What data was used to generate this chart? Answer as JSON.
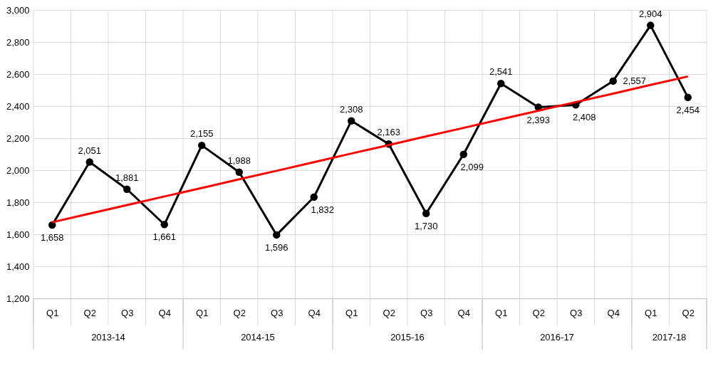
{
  "chart_data": {
    "type": "line",
    "categories": [
      "Q1",
      "Q2",
      "Q3",
      "Q4",
      "Q1",
      "Q2",
      "Q3",
      "Q4",
      "Q1",
      "Q2",
      "Q3",
      "Q4",
      "Q1",
      "Q2",
      "Q3",
      "Q4",
      "Q1",
      "Q2"
    ],
    "annotations": [
      "2013-14",
      "2014-15",
      "2015-16",
      "2016-17",
      "2017-18"
    ],
    "series": [
      {
        "color": "#000000",
        "marker": "circle",
        "values": [
          1658,
          2051,
          1881,
          1661,
          2155,
          1988,
          1596,
          1832,
          2308,
          2163,
          1730,
          2099,
          2541,
          2393,
          2408,
          2557,
          2904,
          2454
        ],
        "value_labels": [
          "1,658",
          "2,051",
          "1,881",
          "1,661",
          "2,155",
          "1,988",
          "1,596",
          "1,832",
          "2,308",
          "2,163",
          "1,730",
          "2,099",
          "2,541",
          "2,393",
          "2,408",
          "2,557",
          "2,904",
          "2,454"
        ]
      },
      {
        "color": "#ff0000",
        "marker": "none",
        "values": [
          1675,
          1729,
          1782,
          1836,
          1889,
          1943,
          1996,
          2050,
          2104,
          2157,
          2211,
          2264,
          2318,
          2371,
          2425,
          2478,
          2532,
          2585
        ]
      }
    ],
    "ylim": [
      1200,
      3000
    ],
    "yticks": [
      {
        "value": 1200,
        "label": "1,200"
      },
      {
        "value": 1400,
        "label": "1,400"
      },
      {
        "value": 1600,
        "label": "1,600"
      },
      {
        "value": 1800,
        "label": "1,800"
      },
      {
        "value": 2000,
        "label": "2,000"
      },
      {
        "value": 2200,
        "label": "2,200"
      },
      {
        "value": 2400,
        "label": "2,400"
      },
      {
        "value": 2600,
        "label": "2,600"
      },
      {
        "value": 2800,
        "label": "2,800"
      },
      {
        "value": 3000,
        "label": "3,000"
      }
    ],
    "grid": true,
    "line_style": "solid"
  }
}
